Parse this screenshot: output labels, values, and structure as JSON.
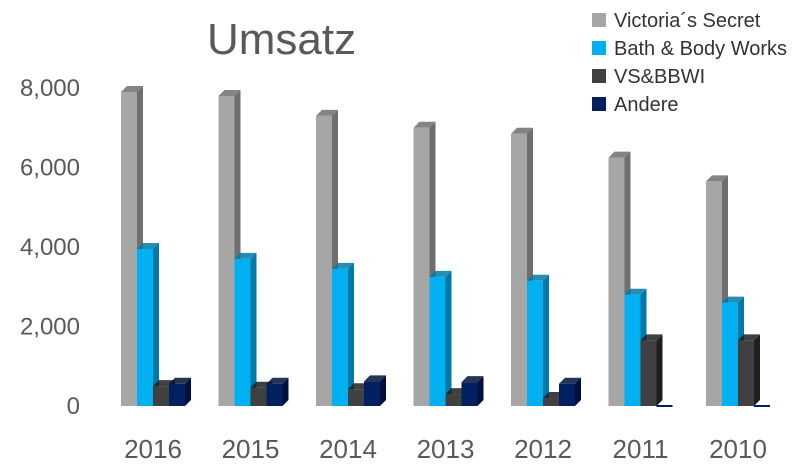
{
  "chart_data": {
    "type": "bar",
    "title": "Umsatz",
    "xlabel": "",
    "ylabel": "",
    "ylim": [
      0,
      8000
    ],
    "yticks": [
      0,
      2000,
      4000,
      6000,
      8000
    ],
    "ytick_labels": [
      "0",
      "2,000",
      "4,000",
      "6,000",
      "8,000"
    ],
    "grid": false,
    "legend_position": "top-right",
    "categories": [
      "2016",
      "2015",
      "2014",
      "2013",
      "2012",
      "2011",
      "2010"
    ],
    "series": [
      {
        "name": "Victoria´s Secret",
        "color": "#a6a6a6",
        "side": "#6f6f6f",
        "values": [
          7900,
          7800,
          7300,
          7000,
          6850,
          6250,
          5650
        ]
      },
      {
        "name": "Bath & Body Works",
        "color": "#00b0f0",
        "side": "#0079a8",
        "values": [
          3950,
          3700,
          3450,
          3250,
          3150,
          2800,
          2600
        ]
      },
      {
        "name": "VS&BBWI",
        "color": "#404040",
        "side": "#1f1f1f",
        "values": [
          500,
          460,
          420,
          300,
          200,
          1650,
          1650
        ]
      },
      {
        "name": "Andere",
        "color": "#002060",
        "side": "#00103a",
        "values": [
          560,
          560,
          620,
          600,
          560,
          0,
          0
        ]
      }
    ]
  }
}
